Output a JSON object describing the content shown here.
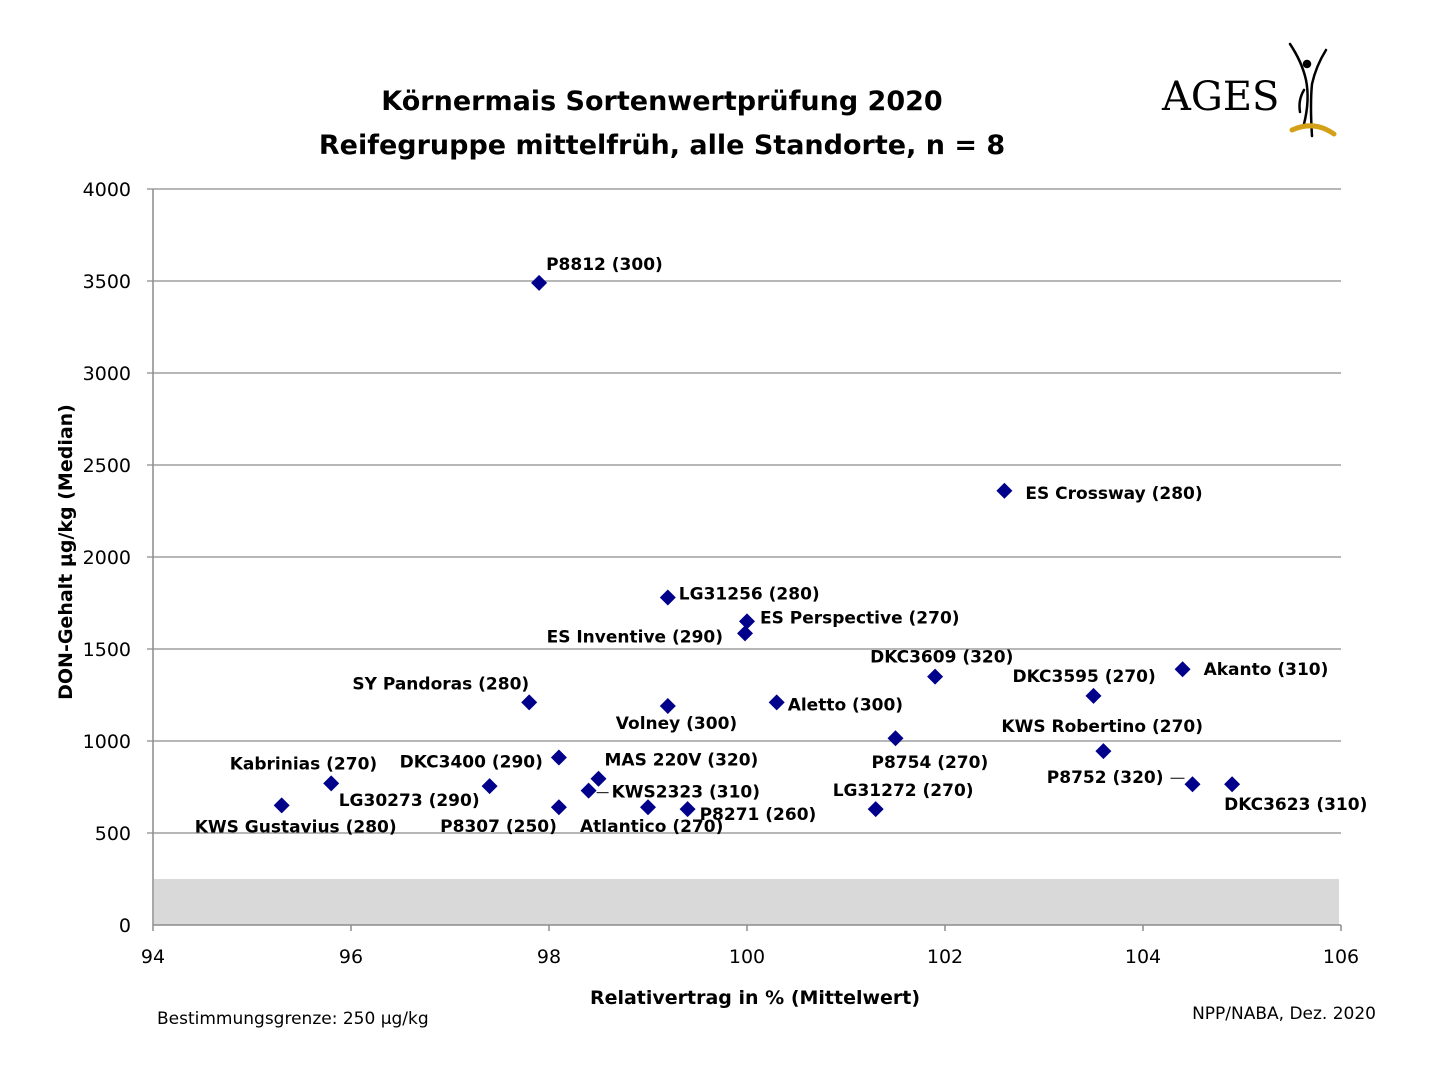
{
  "logo": {
    "text": "AGES",
    "accent_color": "#d4a017"
  },
  "footer": {
    "left_note": "Bestimmungsgrenze: 250 µg/kg",
    "right_note": "NPP/NABA, Dez. 2020"
  },
  "chart_data": {
    "type": "scatter",
    "title_lines": [
      "Körnermais Sortenwertprüfung 2020",
      "Reifegruppe mittelfrüh, alle Standorte, n = 8"
    ],
    "xlabel": "Relativertrag in % (Mittelwert)",
    "ylabel": "DON-Gehalt µg/kg (Median)",
    "xlim": [
      94,
      106
    ],
    "ylim": [
      0,
      4000
    ],
    "x_ticks": [
      94,
      96,
      98,
      100,
      102,
      104,
      106
    ],
    "y_ticks": [
      0,
      500,
      1000,
      1500,
      2000,
      2500,
      3000,
      3500,
      4000
    ],
    "grid": "horizontal",
    "marker_color": "#00008b",
    "detection_limit_band": [
      0,
      250
    ],
    "band_color": "#d9d9d9",
    "points": [
      {
        "label": "P8812 (300)",
        "x": 97.9,
        "y": 3490
      },
      {
        "label": "ES Crossway (280)",
        "x": 102.6,
        "y": 2360
      },
      {
        "label": "LG31256 (280)",
        "x": 99.2,
        "y": 1780
      },
      {
        "label": "ES Perspective (270)",
        "x": 100.0,
        "y": 1650
      },
      {
        "label": "ES Inventive (290)",
        "x": 99.98,
        "y": 1585
      },
      {
        "label": "Akanto (310)",
        "x": 104.4,
        "y": 1390
      },
      {
        "label": "DKC3609 (320)",
        "x": 101.9,
        "y": 1350
      },
      {
        "label": "DKC3595 (270)",
        "x": 103.5,
        "y": 1245
      },
      {
        "label": "SY Pandoras (280)",
        "x": 97.8,
        "y": 1210
      },
      {
        "label": "Aletto (300)",
        "x": 100.3,
        "y": 1210
      },
      {
        "label": "Volney (300)",
        "x": 99.2,
        "y": 1190
      },
      {
        "label": "P8754 (270)",
        "x": 101.5,
        "y": 1015
      },
      {
        "label": "KWS Robertino (270)",
        "x": 103.6,
        "y": 945
      },
      {
        "label": "DKC3400 (290)",
        "x": 98.1,
        "y": 910
      },
      {
        "label": "MAS 220V (320)",
        "x": 98.5,
        "y": 795
      },
      {
        "label": "Kabrinias (270)",
        "x": 95.8,
        "y": 770
      },
      {
        "label": "P8752 (320)",
        "x": 104.5,
        "y": 765
      },
      {
        "label": "DKC3623 (310)",
        "x": 104.9,
        "y": 765
      },
      {
        "label": "LG30273 (290)",
        "x": 97.4,
        "y": 755
      },
      {
        "label": "KWS2323 (310)",
        "x": 98.4,
        "y": 730
      },
      {
        "label": "KWS Gustavius (280)",
        "x": 95.3,
        "y": 650
      },
      {
        "label": "Atlantico (270)",
        "x": 99.0,
        "y": 640
      },
      {
        "label": "P8307 (250)",
        "x": 98.1,
        "y": 640
      },
      {
        "label": "P8271 (260)",
        "x": 99.4,
        "y": 630
      },
      {
        "label": "LG31272 (270)",
        "x": 101.3,
        "y": 630
      }
    ]
  }
}
